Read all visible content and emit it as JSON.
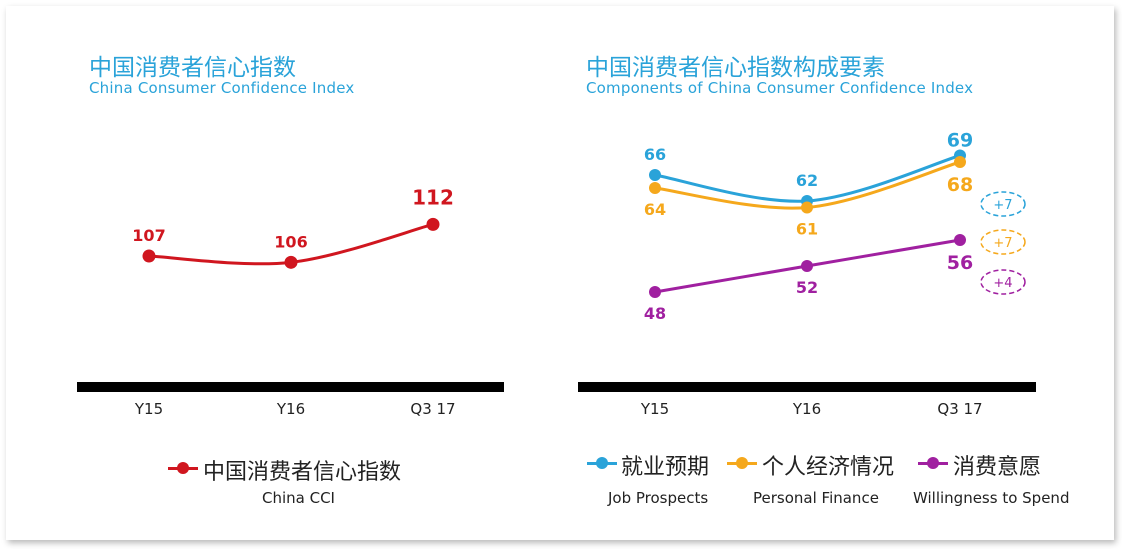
{
  "colors": {
    "title": "#2aa3d9",
    "cci": "#d0161f",
    "job": "#2aa3d9",
    "finance": "#f5a81c",
    "spend": "#a020a0",
    "axis": "#000000"
  },
  "left": {
    "title_cn": "中国消费者信心指数",
    "title_en": "China  Consumer Confidence Index",
    "legend_cn": "中国消费者信心指数",
    "legend_en": "China CCI"
  },
  "right": {
    "title_cn": "中国消费者信心指数构成要素",
    "title_en": "Components of China  Consumer Confidence Index",
    "legend": [
      {
        "cn": "就业预期",
        "en": "Job Prospects"
      },
      {
        "cn": "个人经济情况",
        "en": "Personal Finance"
      },
      {
        "cn": "消费意愿",
        "en": "Willingness to Spend"
      }
    ]
  },
  "chart_data": [
    {
      "type": "line",
      "categories": [
        "Y15",
        "Y16",
        "Q3 17"
      ],
      "series": [
        {
          "name": "中国消费者信心指数",
          "values": [
            107,
            106,
            112
          ]
        }
      ],
      "title": "中国消费者信心指数",
      "subtitle": "China  Consumer Confidence Index"
    },
    {
      "type": "line",
      "categories": [
        "Y15",
        "Y16",
        "Q3 17"
      ],
      "series": [
        {
          "name": "就业预期",
          "values": [
            66,
            62,
            69
          ],
          "change": "+7"
        },
        {
          "name": "个人经济情况",
          "values": [
            64,
            61,
            68
          ],
          "change": "+7"
        },
        {
          "name": "消费意愿",
          "values": [
            48,
            52,
            56
          ],
          "change": "+4"
        }
      ],
      "title": "中国消费者信心指数构成要素",
      "subtitle": "Components of China  Consumer Confidence Index"
    }
  ]
}
